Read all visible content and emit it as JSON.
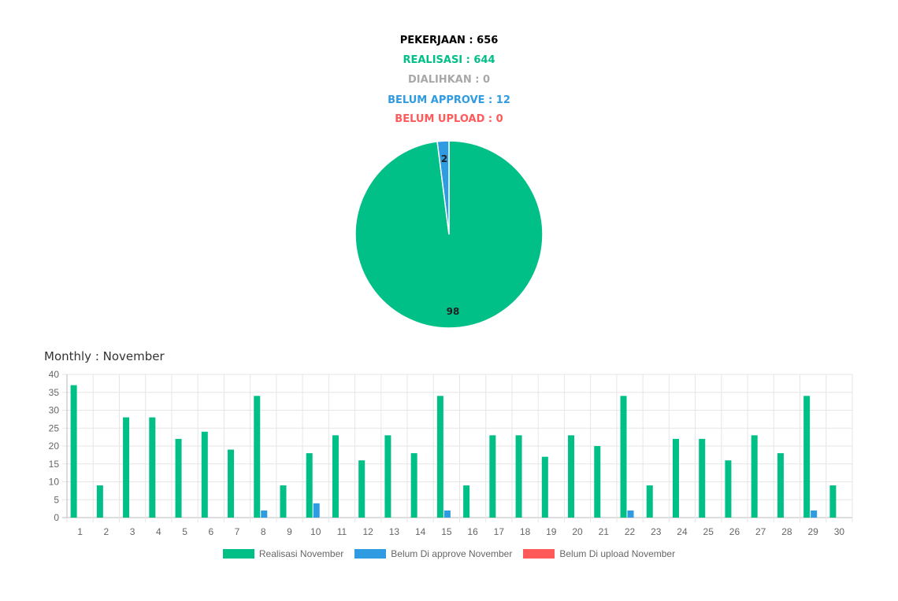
{
  "summary": {
    "pekerjaan": "PEKERJAAN : 656",
    "realisasi": "REALISASI : 644",
    "dialihkan": "DIALIHKAN : 0",
    "belum_approve": "BELUM APPROVE : 12",
    "belum_upload": "BELUM UPLOAD : 0"
  },
  "colors": {
    "realisasi": "#00bf87",
    "approve": "#2f9be0",
    "upload": "#ff5a5a",
    "dialihkan": "#a8a8a8",
    "pekerjaan": "#000000"
  },
  "monthly_title": "Monthly : November",
  "chart_data": [
    {
      "type": "pie",
      "values": [
        98,
        2
      ],
      "labels": [
        "98",
        "2"
      ]
    },
    {
      "type": "bar",
      "categories": [
        "1",
        "2",
        "3",
        "4",
        "5",
        "6",
        "7",
        "8",
        "9",
        "10",
        "11",
        "12",
        "13",
        "14",
        "15",
        "16",
        "17",
        "18",
        "19",
        "20",
        "21",
        "22",
        "23",
        "24",
        "25",
        "26",
        "27",
        "28",
        "29",
        "30"
      ],
      "series": [
        {
          "name": "Realisasi November",
          "values": [
            37,
            9,
            28,
            28,
            22,
            24,
            19,
            34,
            9,
            18,
            23,
            16,
            23,
            18,
            34,
            9,
            23,
            23,
            17,
            23,
            20,
            34,
            9,
            22,
            22,
            16,
            23,
            18,
            34,
            9
          ]
        },
        {
          "name": "Belum Di approve November",
          "values": [
            0,
            0,
            0,
            0,
            0,
            0,
            0,
            2,
            0,
            4,
            0,
            0,
            0,
            0,
            2,
            0,
            0,
            0,
            0,
            0,
            0,
            2,
            0,
            0,
            0,
            0,
            0,
            0,
            2,
            0
          ]
        },
        {
          "name": "Belum Di upload November",
          "values": [
            0,
            0,
            0,
            0,
            0,
            0,
            0,
            0,
            0,
            0,
            0,
            0,
            0,
            0,
            0,
            0,
            0,
            0,
            0,
            0,
            0,
            0,
            0,
            0,
            0,
            0,
            0,
            0,
            0,
            0
          ]
        }
      ],
      "yticks": [
        "0",
        "5",
        "10",
        "15",
        "20",
        "25",
        "30",
        "35",
        "40"
      ],
      "ylim": [
        0,
        40
      ],
      "grid": true,
      "legend_position": "bottom"
    }
  ]
}
